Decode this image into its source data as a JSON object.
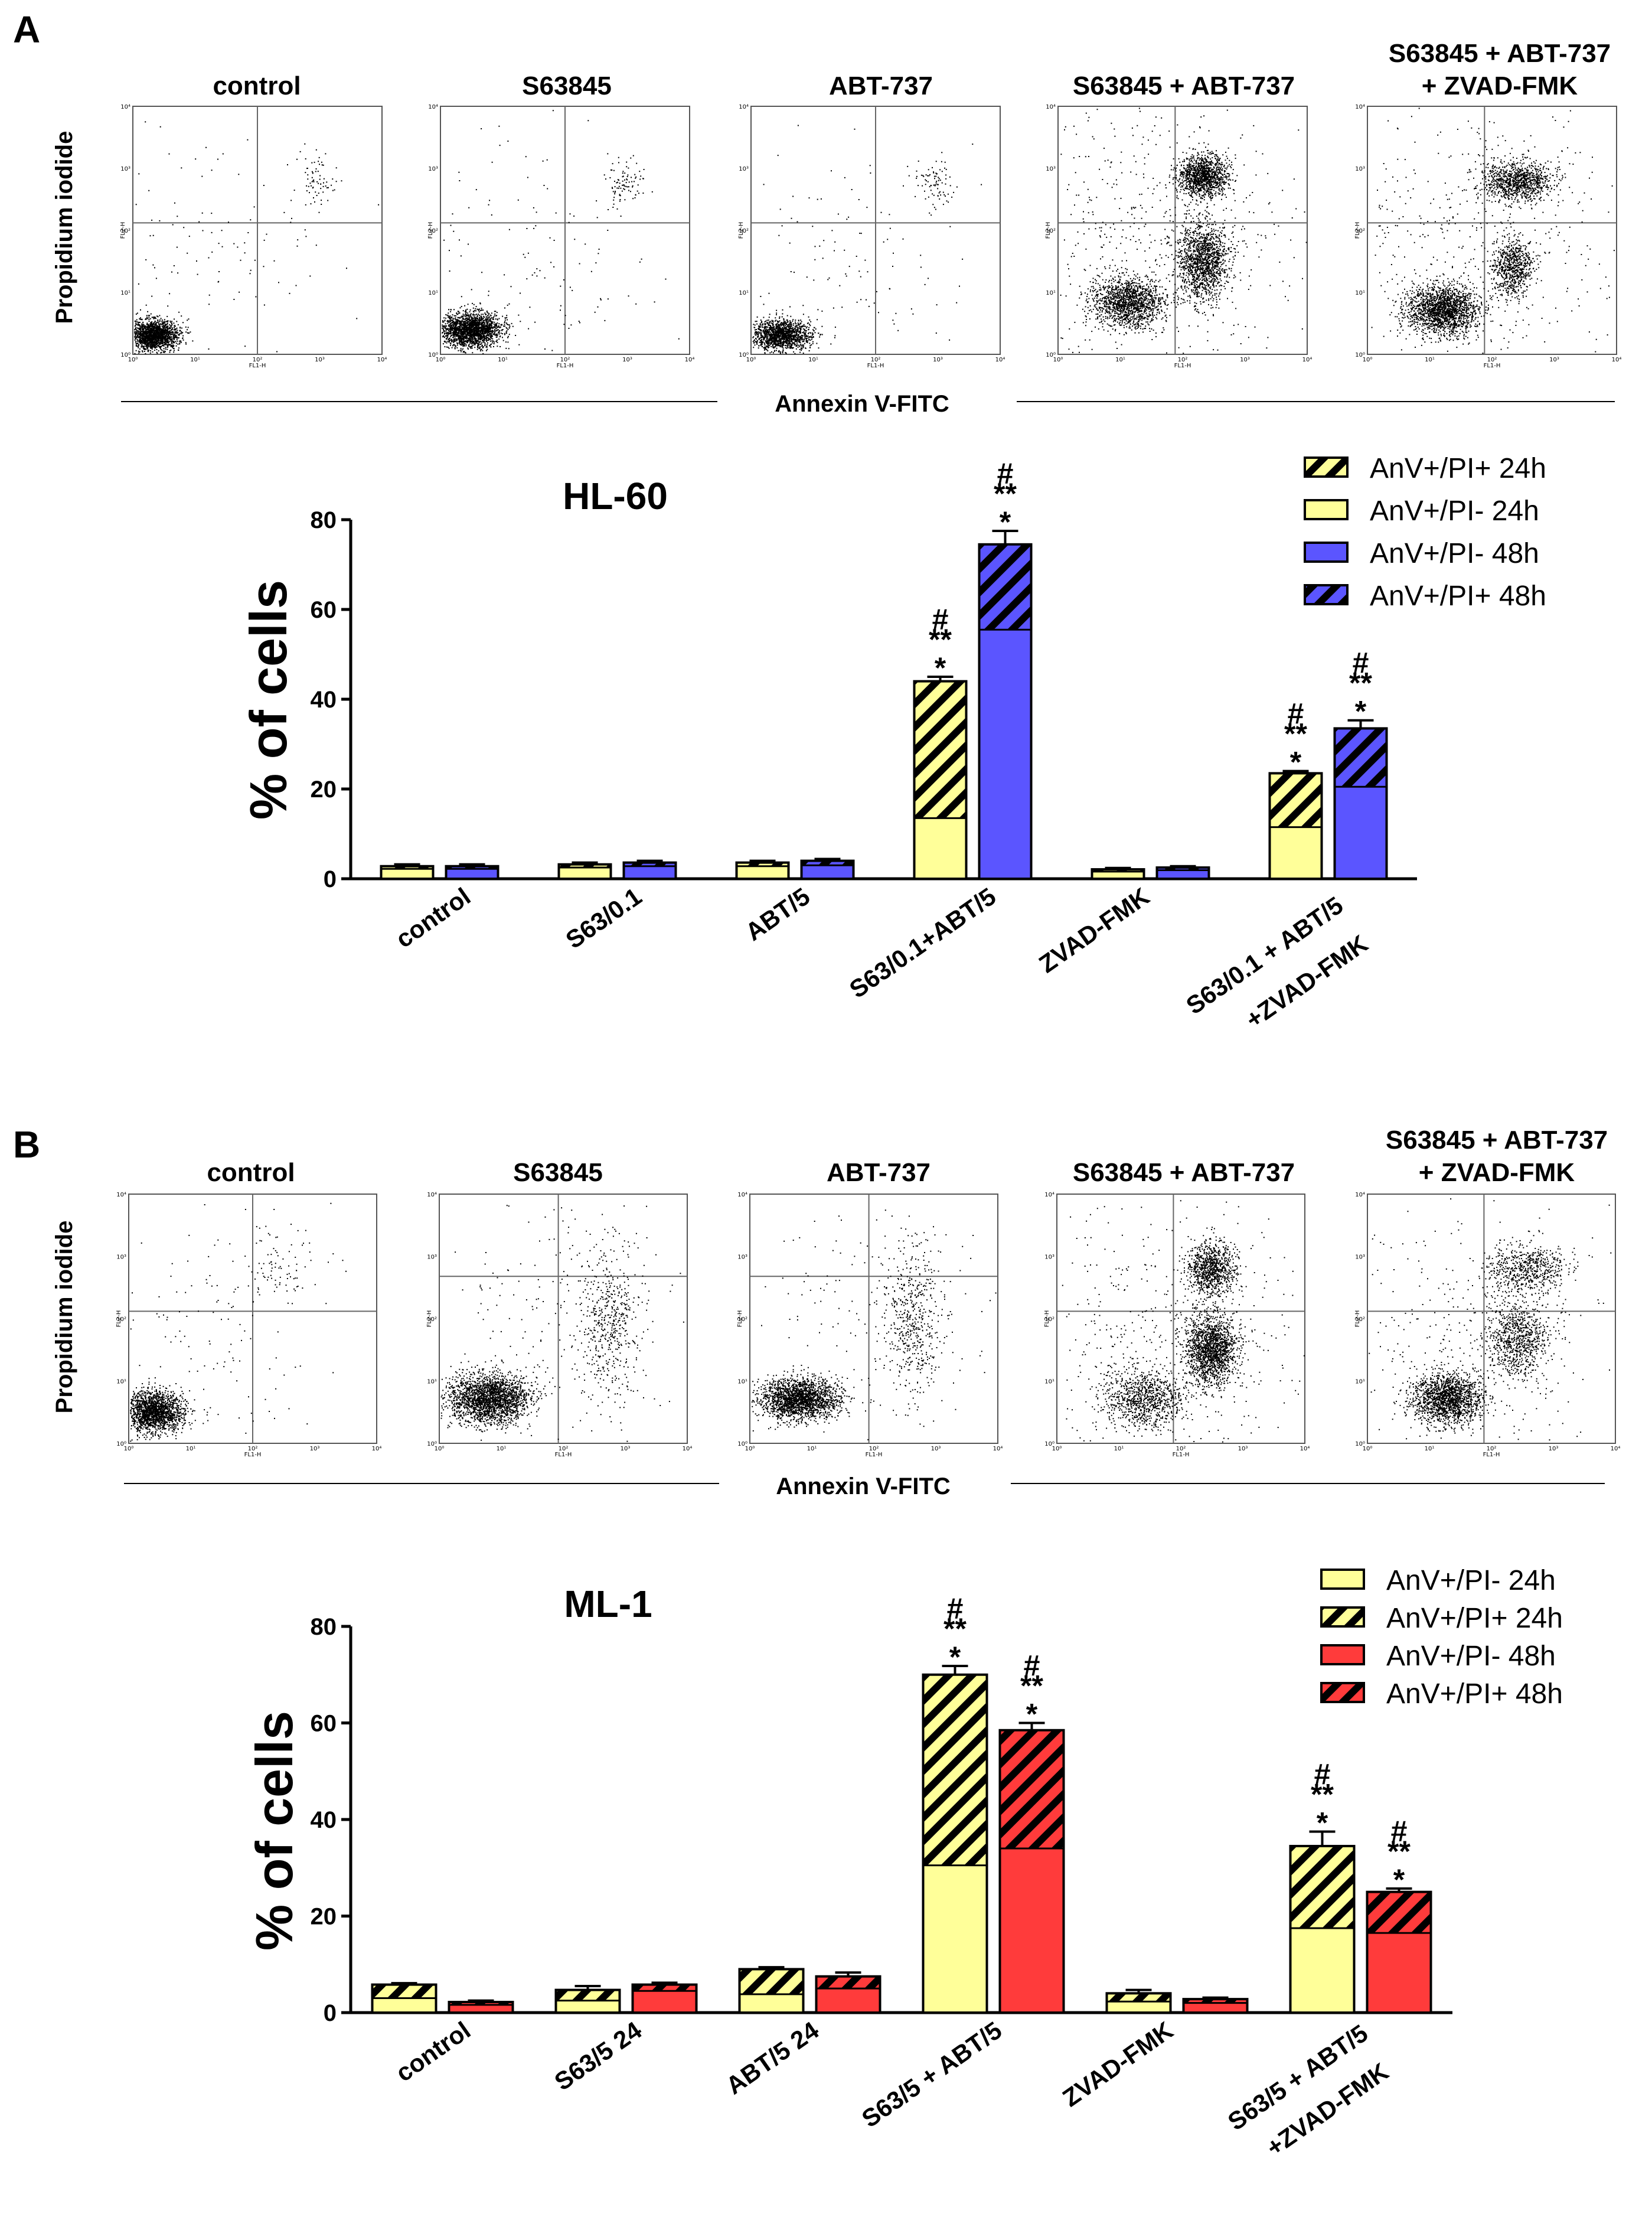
{
  "panels": [
    {
      "letter": "A",
      "flow": {
        "titles": [
          "control",
          "S63845",
          "ABT-737",
          "S63845 + ABT-737",
          "S63845 + ABT-737",
          "+ ZVAD-FMK"
        ],
        "y_axis": "Propidium iodide",
        "x_axis": "Annexin V-FITC",
        "plot_y_label": "FL2-H",
        "plot_x_label": "FL1-H",
        "decades": [
          "10⁰",
          "10¹",
          "10²",
          "10³",
          "10⁴"
        ]
      },
      "chart_data": {
        "type": "bar",
        "title": "HL-60",
        "ylabel": "% of cells",
        "ylim": [
          0,
          80
        ],
        "yticks": [
          "0",
          "20",
          "40",
          "60",
          "80"
        ],
        "categories": [
          "control",
          "S63/0.1",
          "ABT/5",
          "S63/0.1+ABT/5",
          "ZVAD-FMK",
          "S63/0.1 + ABT/5",
          "+ZVAD-FMK"
        ],
        "groups": [
          {
            "bars": [
              {
                "series": "24h",
                "pi_neg": 2.2,
                "pi_pos": 0.6,
                "err": 0.4
              },
              {
                "series": "48h",
                "pi_neg": 2.2,
                "pi_pos": 0.6,
                "err": 0.4
              }
            ]
          },
          {
            "bars": [
              {
                "series": "24h",
                "pi_neg": 2.5,
                "pi_pos": 0.7,
                "err": 0.4
              },
              {
                "series": "48h",
                "pi_neg": 2.8,
                "pi_pos": 0.8,
                "err": 0.4
              }
            ]
          },
          {
            "bars": [
              {
                "series": "24h",
                "pi_neg": 2.8,
                "pi_pos": 0.8,
                "err": 0.4
              },
              {
                "series": "48h",
                "pi_neg": 3.0,
                "pi_pos": 1.0,
                "err": 0.4
              }
            ]
          },
          {
            "bars": [
              {
                "series": "24h",
                "pi_neg": 13.5,
                "pi_pos": 30.5,
                "err": 1.0,
                "sig": [
                  "#",
                  "**",
                  "*"
                ]
              },
              {
                "series": "48h",
                "pi_neg": 55.5,
                "pi_pos": 19.0,
                "err": 3.0,
                "sig": [
                  "#",
                  "**",
                  "*"
                ]
              }
            ]
          },
          {
            "bars": [
              {
                "series": "24h",
                "pi_neg": 1.6,
                "pi_pos": 0.5,
                "err": 0.3
              },
              {
                "series": "48h",
                "pi_neg": 1.9,
                "pi_pos": 0.6,
                "err": 0.3
              }
            ]
          },
          {
            "bars": [
              {
                "series": "24h",
                "pi_neg": 11.5,
                "pi_pos": 12.0,
                "err": 0.5,
                "sig": [
                  "#",
                  "**",
                  "*"
                ]
              },
              {
                "series": "48h",
                "pi_neg": 20.5,
                "pi_pos": 13.0,
                "err": 1.8,
                "sig": [
                  "#",
                  "**",
                  "*"
                ]
              }
            ]
          }
        ],
        "colors": {
          "24h": "#ffff99",
          "48h": "#5b55ff"
        },
        "legend": [
          {
            "label": "AnV+/PI+ 24h",
            "color": "#ffff99",
            "hatch": true
          },
          {
            "label": "AnV+/PI- 24h",
            "color": "#ffff99",
            "hatch": false
          },
          {
            "label": "AnV+/PI- 48h",
            "color": "#5b55ff",
            "hatch": false
          },
          {
            "label": "AnV+/PI+ 48h",
            "color": "#5b55ff",
            "hatch": true
          }
        ],
        "legend_position": "top-right"
      }
    },
    {
      "letter": "B",
      "flow": {
        "titles": [
          "control",
          "S63845",
          "ABT-737",
          "S63845 + ABT-737",
          "S63845 + ABT-737",
          "+ ZVAD-FMK"
        ],
        "y_axis": "Propidium iodide",
        "x_axis": "Annexin V-FITC",
        "plot_y_label": "FL2-H",
        "plot_x_label": "FL1-H",
        "decades": [
          "10⁰",
          "10¹",
          "10²",
          "10³",
          "10⁴"
        ]
      },
      "chart_data": {
        "type": "bar",
        "title": "ML-1",
        "ylabel": "% of cells",
        "ylim": [
          0,
          80
        ],
        "yticks": [
          "0",
          "20",
          "40",
          "60",
          "80"
        ],
        "categories": [
          "control",
          "S63/5 24",
          "ABT/5 24",
          "S63/5 + ABT/5",
          "ZVAD-FMK",
          "S63/5 + ABT/5",
          "+ZVAD-FMK"
        ],
        "groups": [
          {
            "bars": [
              {
                "series": "24h",
                "pi_neg": 3.0,
                "pi_pos": 2.8,
                "err": 0.3
              },
              {
                "series": "48h",
                "pi_neg": 1.6,
                "pi_pos": 0.6,
                "err": 0.3
              }
            ]
          },
          {
            "bars": [
              {
                "series": "24h",
                "pi_neg": 2.5,
                "pi_pos": 2.2,
                "err": 0.8
              },
              {
                "series": "48h",
                "pi_neg": 4.5,
                "pi_pos": 1.3,
                "err": 0.4
              }
            ]
          },
          {
            "bars": [
              {
                "series": "24h",
                "pi_neg": 3.8,
                "pi_pos": 5.2,
                "err": 0.4
              },
              {
                "series": "48h",
                "pi_neg": 5.0,
                "pi_pos": 2.5,
                "err": 0.8
              }
            ]
          },
          {
            "bars": [
              {
                "series": "24h",
                "pi_neg": 30.5,
                "pi_pos": 39.5,
                "err": 1.8,
                "sig": [
                  "#",
                  "**",
                  "*"
                ]
              },
              {
                "series": "48h",
                "pi_neg": 34.0,
                "pi_pos": 24.5,
                "err": 1.5,
                "sig": [
                  "#",
                  "**",
                  "*"
                ]
              }
            ]
          },
          {
            "bars": [
              {
                "series": "24h",
                "pi_neg": 2.3,
                "pi_pos": 1.7,
                "err": 0.7
              },
              {
                "series": "48h",
                "pi_neg": 2.0,
                "pi_pos": 0.8,
                "err": 0.3
              }
            ]
          },
          {
            "bars": [
              {
                "series": "24h",
                "pi_neg": 17.5,
                "pi_pos": 17.0,
                "err": 3.0,
                "sig": [
                  "#",
                  "**",
                  "*"
                ]
              },
              {
                "series": "48h",
                "pi_neg": 16.5,
                "pi_pos": 8.5,
                "err": 0.7,
                "sig": [
                  "#",
                  "**",
                  "*"
                ]
              }
            ]
          }
        ],
        "colors": {
          "24h": "#ffff99",
          "48h": "#ff3b3b"
        },
        "legend": [
          {
            "label": "AnV+/PI- 24h",
            "color": "#ffff99",
            "hatch": false
          },
          {
            "label": "AnV+/PI+ 24h",
            "color": "#ffff99",
            "hatch": true
          },
          {
            "label": "AnV+/PI- 48h",
            "color": "#ff3b3b",
            "hatch": false
          },
          {
            "label": "AnV+/PI+ 48h",
            "color": "#ff3b3b",
            "hatch": true
          }
        ],
        "legend_position": "top-right"
      }
    }
  ]
}
